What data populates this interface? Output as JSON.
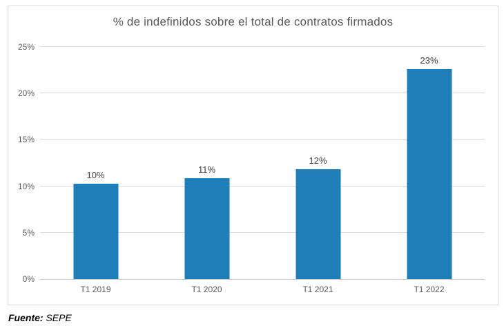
{
  "chart_data": {
    "type": "bar",
    "title": "% de indefinidos sobre el total de contratos firmados",
    "categories": [
      "T1 2019",
      "T1 2020",
      "T1 2021",
      "T1 2022"
    ],
    "values": [
      10.3,
      10.9,
      11.8,
      22.6
    ],
    "data_labels": [
      "10%",
      "11%",
      "12%",
      "23%"
    ],
    "xlabel": "",
    "ylabel": "",
    "ylim": [
      0,
      25
    ],
    "yticks": [
      0,
      5,
      10,
      15,
      20,
      25
    ],
    "ytick_labels": [
      "0%",
      "5%",
      "10%",
      "15%",
      "20%",
      "25%"
    ],
    "grid": true,
    "legend": "none"
  },
  "colors": {
    "bar": "#1F7DB8",
    "title_text": "#595959",
    "axis_text": "#595959",
    "data_label_text": "#404040",
    "gridline": "#D9D9D9",
    "axis_line": "#C6C6C6",
    "border": "#D9D9D9",
    "background": "#FFFFFF"
  },
  "footer": {
    "label": "Fuente:",
    "value": " SEPE"
  }
}
